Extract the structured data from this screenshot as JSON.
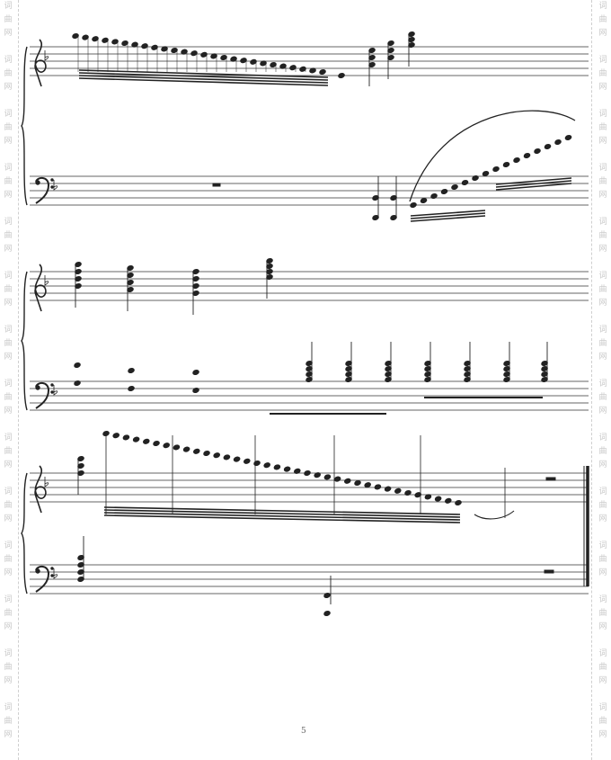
{
  "page": {
    "number": "5"
  },
  "watermark": {
    "glyphs": [
      "词",
      "曲",
      "网"
    ]
  },
  "score": {
    "key_signature": "F major (one flat)",
    "clefs": [
      "treble-clef",
      "bass-clef"
    ],
    "systems": 3,
    "ending": "final-barline"
  },
  "colors": {
    "ink": "#222222",
    "staff": "#333333",
    "watermark": "#c8c8c8"
  }
}
